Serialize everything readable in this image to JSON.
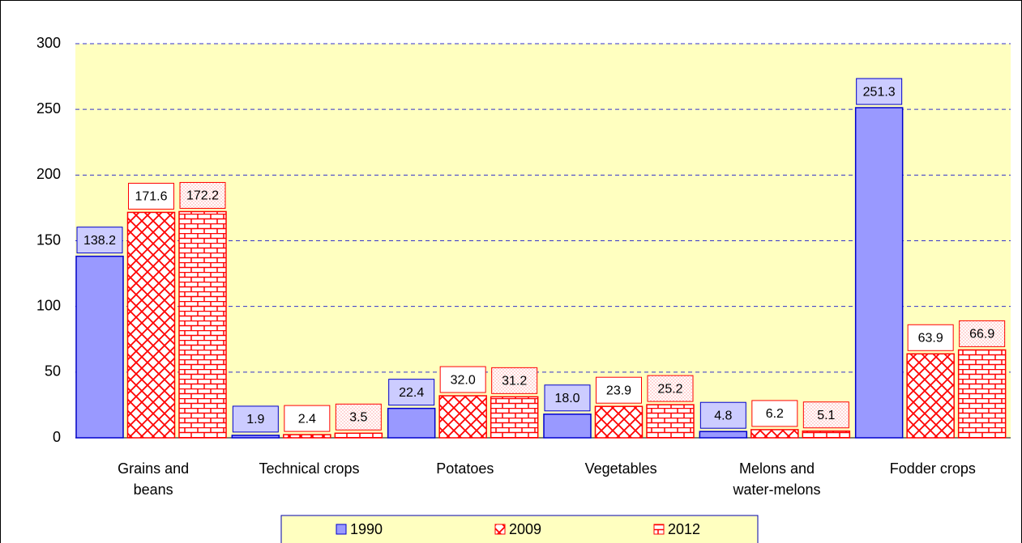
{
  "chart_data": {
    "type": "bar",
    "categories": [
      "Grains and\nbeans",
      "Technical crops",
      "Potatoes",
      "Vegetables",
      "Melons and\nwater-melons",
      "Fodder crops"
    ],
    "series": [
      {
        "name": "1990",
        "color": "#9999ff",
        "pattern": "solid",
        "values": [
          138.2,
          1.9,
          22.4,
          18.0,
          4.8,
          251.3
        ],
        "value_labels": [
          "138.2",
          "1.9",
          "22.4",
          "18.0",
          "4.8",
          "251.3"
        ]
      },
      {
        "name": "2009",
        "color": "#ff0000",
        "pattern": "crosshatch",
        "values": [
          171.6,
          2.4,
          32.0,
          23.9,
          6.2,
          63.9
        ],
        "value_labels": [
          "171.6",
          "2.4",
          "32.0",
          "23.9",
          "6.2",
          "63.9"
        ]
      },
      {
        "name": "2012",
        "color": "#ff0000",
        "pattern": "brick",
        "values": [
          172.2,
          3.5,
          31.2,
          25.2,
          5.1,
          66.9
        ],
        "value_labels": [
          "172.2",
          "3.5",
          "31.2",
          "25.2",
          "5.1",
          "66.9"
        ]
      }
    ],
    "ylim": [
      0,
      300
    ],
    "yticks": [
      0,
      50,
      100,
      150,
      200,
      250,
      300
    ],
    "grid": true,
    "legend": "bottom"
  }
}
